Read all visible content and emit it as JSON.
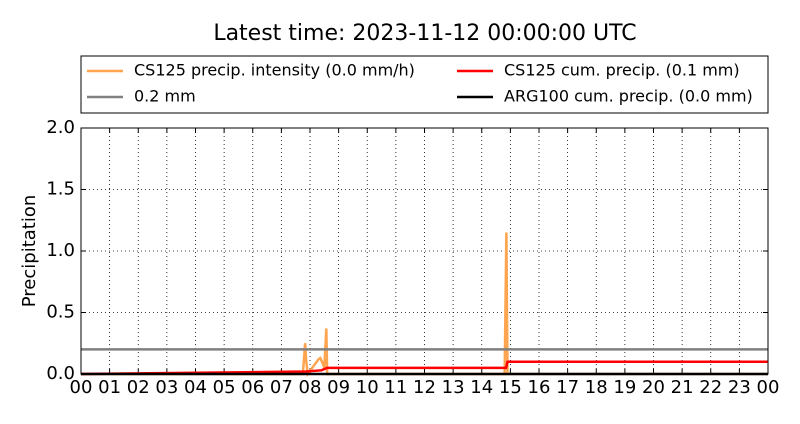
{
  "chart_data": {
    "type": "line",
    "title": "Latest time: 2023-11-12 00:00:00 UTC",
    "y_label": "Precipitation",
    "xlim": [
      0,
      24
    ],
    "ylim": [
      0,
      2
    ],
    "xticks": [
      {
        "value": 0,
        "label": "00"
      },
      {
        "value": 1,
        "label": "01"
      },
      {
        "value": 2,
        "label": "02"
      },
      {
        "value": 3,
        "label": "03"
      },
      {
        "value": 4,
        "label": "04"
      },
      {
        "value": 5,
        "label": "05"
      },
      {
        "value": 6,
        "label": "06"
      },
      {
        "value": 7,
        "label": "07"
      },
      {
        "value": 8,
        "label": "08"
      },
      {
        "value": 9,
        "label": "09"
      },
      {
        "value": 10,
        "label": "10"
      },
      {
        "value": 11,
        "label": "11"
      },
      {
        "value": 12,
        "label": "12"
      },
      {
        "value": 13,
        "label": "13"
      },
      {
        "value": 14,
        "label": "14"
      },
      {
        "value": 15,
        "label": "15"
      },
      {
        "value": 16,
        "label": "16"
      },
      {
        "value": 17,
        "label": "17"
      },
      {
        "value": 18,
        "label": "18"
      },
      {
        "value": 19,
        "label": "19"
      },
      {
        "value": 20,
        "label": "20"
      },
      {
        "value": 21,
        "label": "21"
      },
      {
        "value": 22,
        "label": "22"
      },
      {
        "value": 23,
        "label": "23"
      },
      {
        "value": 24,
        "label": "00"
      }
    ],
    "yticks": [
      {
        "value": 0,
        "label": "0.0"
      },
      0.5,
      {
        "value": 1,
        "label": "1.0"
      },
      1.5,
      {
        "value": 2,
        "label": "2.0"
      }
    ],
    "grid": true,
    "series": [
      {
        "name": "CS125 precip. intensity (0.0 mm/h)",
        "color": "#ffa54f",
        "x": [
          0,
          7.75,
          7.83,
          7.87,
          7.92,
          8.3,
          8.36,
          8.42,
          8.5,
          8.57,
          8.6,
          14.8,
          14.86,
          14.9,
          24
        ],
        "values": [
          0,
          0,
          0.25,
          0.1,
          0,
          0.12,
          0.13,
          0.1,
          0.05,
          0.37,
          0,
          0,
          1.15,
          0,
          0
        ]
      },
      {
        "name": "0.2 mm",
        "color": "#808080",
        "x": [
          0,
          24
        ],
        "values": [
          0.2,
          0.2
        ]
      },
      {
        "name": "CS125 cum. precip. (0.1 mm)",
        "color": "#ff0000",
        "x": [
          0,
          7.85,
          8.4,
          8.6,
          14.85,
          14.9,
          24
        ],
        "values": [
          0,
          0.02,
          0.03,
          0.05,
          0.05,
          0.1,
          0.1
        ]
      },
      {
        "name": "ARG100 cum. precip. (0.0 mm)",
        "color": "#000000",
        "x": [
          0,
          24
        ],
        "values": [
          0,
          0
        ]
      }
    ]
  }
}
